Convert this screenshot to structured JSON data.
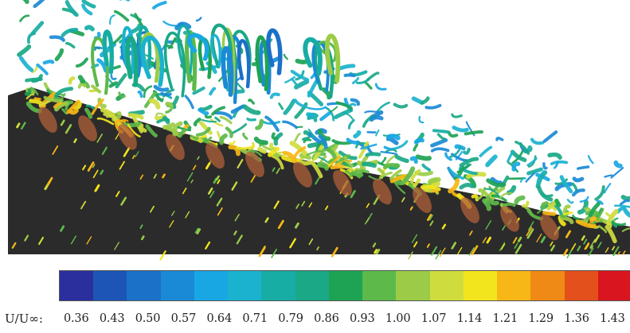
{
  "figure": {
    "description_icon": "vortex-isosurface-image"
  },
  "colorbar": {
    "variable_label": "U/U∞:",
    "ticks": [
      "0.36",
      "0.43",
      "0.50",
      "0.57",
      "0.64",
      "0.71",
      "0.79",
      "0.86",
      "0.93",
      "1.00",
      "1.07",
      "1.14",
      "1.21",
      "1.29",
      "1.36",
      "1.43"
    ],
    "colors": [
      "#2b2f9e",
      "#1c55b5",
      "#1b70c8",
      "#1a8ad6",
      "#18a7e3",
      "#1bb2cf",
      "#17aca4",
      "#1aa886",
      "#1da353",
      "#5db94a",
      "#9ccc47",
      "#cfdc3e",
      "#f3e51d",
      "#f7b716",
      "#f08a17",
      "#e4501c",
      "#d9151f"
    ]
  }
}
